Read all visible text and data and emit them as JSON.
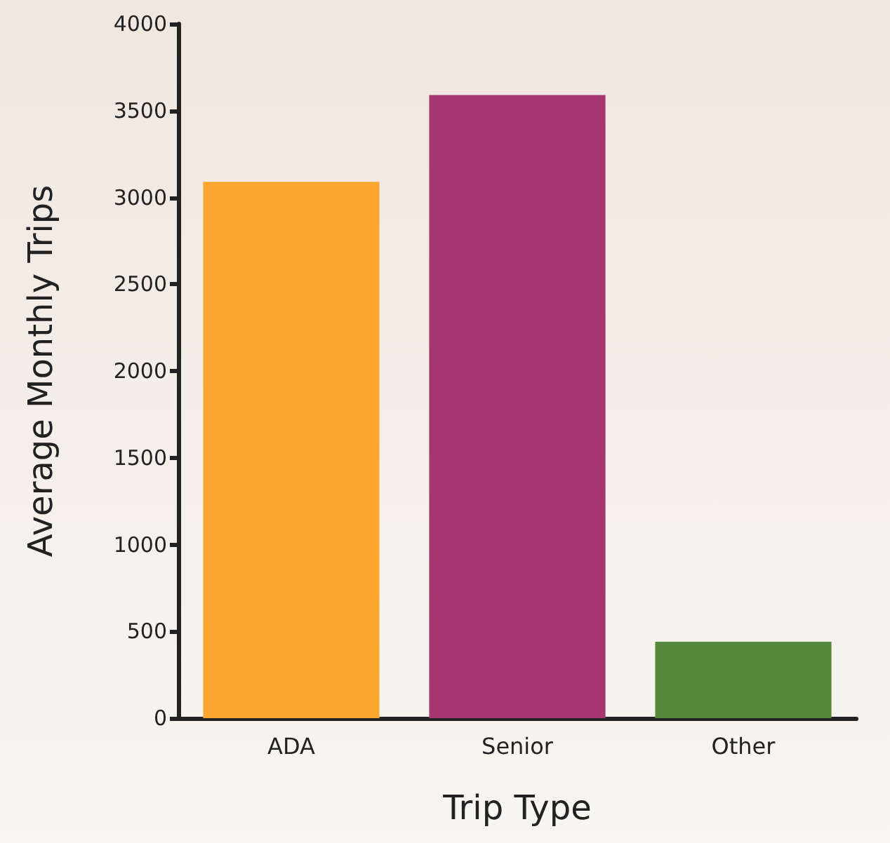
{
  "chart_data": {
    "type": "bar",
    "xlabel": "Trip Type",
    "ylabel": "Average Monthly Trips",
    "categories": [
      "ADA",
      "Senior",
      "Other"
    ],
    "values": [
      3090,
      3590,
      440
    ],
    "colors": [
      "#fca830",
      "#a63670",
      "#558a3c"
    ],
    "ylim": [
      0,
      4000
    ],
    "yticks": [
      0,
      500,
      1000,
      1500,
      2000,
      2500,
      3000,
      3500,
      4000
    ],
    "grid": false
  }
}
